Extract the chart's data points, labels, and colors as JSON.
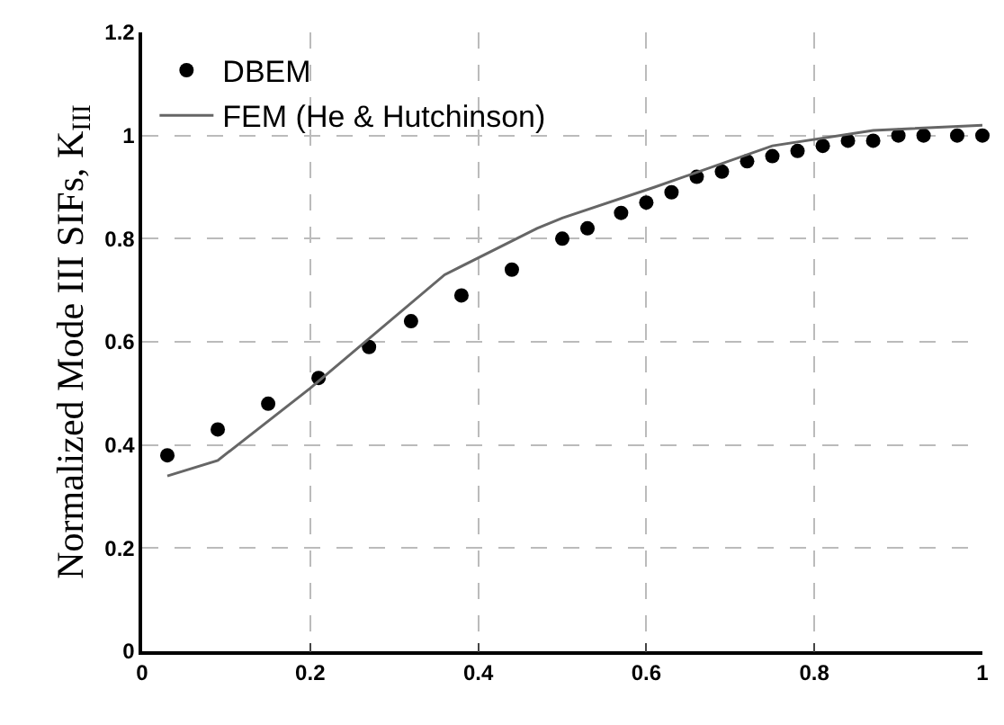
{
  "chart_data": {
    "type": "scatter",
    "ylabel": "Normalized Mode III SIFs, K$_{III}$",
    "xlim": [
      0,
      1
    ],
    "xticks": [
      0,
      0.2,
      0.4,
      0.6,
      0.8,
      1
    ],
    "ylim": [
      0,
      1.2
    ],
    "yticks": [
      0,
      0.2,
      0.4,
      0.6,
      0.8,
      1,
      1.2
    ],
    "grid": true,
    "legend": "top left",
    "series": [
      {
        "name": "DBEM",
        "type": "scatter",
        "marker": "circle",
        "color": "#000000",
        "x": [
          0.03,
          0.09,
          0.15,
          0.21,
          0.27,
          0.32,
          0.38,
          0.44,
          0.5,
          0.53,
          0.57,
          0.6,
          0.63,
          0.66,
          0.69,
          0.72,
          0.75,
          0.78,
          0.81,
          0.84,
          0.87,
          0.9,
          0.93,
          0.97,
          1.0
        ],
        "values": [
          0.38,
          0.43,
          0.48,
          0.53,
          0.59,
          0.64,
          0.69,
          0.74,
          0.8,
          0.82,
          0.85,
          0.87,
          0.89,
          0.92,
          0.93,
          0.95,
          0.96,
          0.97,
          0.98,
          0.99,
          0.99,
          1.0,
          1.0,
          1.0,
          1.0
        ]
      },
      {
        "name": "FEM (He & Hutchinson)",
        "type": "line",
        "marker": "none",
        "line_style": "solid",
        "color": "#666666",
        "x": [
          0.03,
          0.09,
          0.2,
          0.36,
          0.47,
          0.5,
          0.61,
          0.75,
          0.87,
          1.0
        ],
        "values": [
          0.34,
          0.37,
          0.51,
          0.73,
          0.82,
          0.84,
          0.9,
          0.98,
          1.01,
          1.02
        ]
      }
    ]
  }
}
